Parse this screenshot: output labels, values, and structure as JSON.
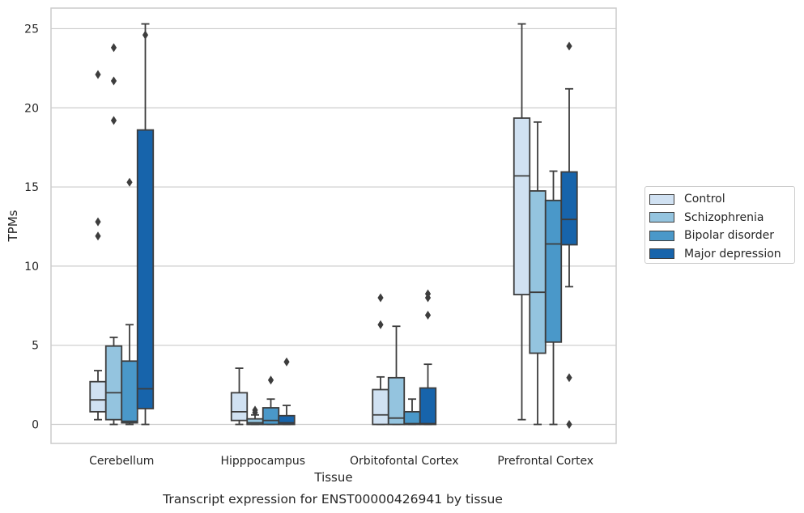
{
  "chart_data": {
    "type": "box",
    "title": "Transcript expression for ENST00000426941 by tissue",
    "xlabel": "Tissue",
    "ylabel": "TPMs",
    "ylim": [
      -1.2,
      26.3
    ],
    "yticks": [
      0,
      5,
      10,
      15,
      20,
      25
    ],
    "grid": true,
    "legend_position": "right",
    "categories": [
      "Cerebellum",
      "Hipppocampus",
      "Orbitofontal Cortex",
      "Prefrontal Cortex"
    ],
    "series": [
      {
        "name": "Control",
        "color": "#d0e1f2",
        "boxes": [
          {
            "q1": 0.8,
            "median": 1.55,
            "q3": 2.7,
            "whisker_low": 0.3,
            "whisker_high": 3.4,
            "outliers": [
              22.1,
              12.8,
              11.9
            ]
          },
          {
            "q1": 0.25,
            "median": 0.8,
            "q3": 2.0,
            "whisker_low": 0.0,
            "whisker_high": 3.55,
            "outliers": []
          },
          {
            "q1": 0.0,
            "median": 0.6,
            "q3": 2.2,
            "whisker_low": 0.0,
            "whisker_high": 3.0,
            "outliers": [
              8.0,
              6.3
            ]
          },
          {
            "q1": 8.2,
            "median": 15.7,
            "q3": 19.35,
            "whisker_low": 0.3,
            "whisker_high": 25.3,
            "outliers": []
          }
        ]
      },
      {
        "name": "Schizophrenia",
        "color": "#94c4df",
        "boxes": [
          {
            "q1": 0.3,
            "median": 2.0,
            "q3": 4.95,
            "whisker_low": 0.0,
            "whisker_high": 5.5,
            "outliers": [
              23.8,
              21.7,
              19.2
            ]
          },
          {
            "q1": 0.0,
            "median": 0.1,
            "q3": 0.35,
            "whisker_low": 0.0,
            "whisker_high": 0.6,
            "outliers": [
              0.9,
              0.75
            ]
          },
          {
            "q1": 0.0,
            "median": 0.4,
            "q3": 2.95,
            "whisker_low": 0.0,
            "whisker_high": 6.2,
            "outliers": []
          },
          {
            "q1": 4.5,
            "median": 8.35,
            "q3": 14.75,
            "whisker_low": 0.0,
            "whisker_high": 19.1,
            "outliers": []
          }
        ]
      },
      {
        "name": "Bipolar disorder",
        "color": "#4a98c9",
        "boxes": [
          {
            "q1": 0.1,
            "median": 0.2,
            "q3": 4.0,
            "whisker_low": 0.0,
            "whisker_high": 6.3,
            "outliers": [
              15.3
            ]
          },
          {
            "q1": 0.0,
            "median": 0.25,
            "q3": 1.05,
            "whisker_low": 0.0,
            "whisker_high": 1.6,
            "outliers": [
              2.8
            ]
          },
          {
            "q1": 0.0,
            "median": 0.05,
            "q3": 0.8,
            "whisker_low": 0.0,
            "whisker_high": 1.6,
            "outliers": []
          },
          {
            "q1": 5.2,
            "median": 11.4,
            "q3": 14.15,
            "whisker_low": 0.0,
            "whisker_high": 16.0,
            "outliers": []
          }
        ]
      },
      {
        "name": "Major depression",
        "color": "#1764ab",
        "boxes": [
          {
            "q1": 1.0,
            "median": 2.25,
            "q3": 18.6,
            "whisker_low": 0.0,
            "whisker_high": 25.3,
            "outliers": [
              24.6
            ]
          },
          {
            "q1": 0.0,
            "median": 0.1,
            "q3": 0.55,
            "whisker_low": 0.0,
            "whisker_high": 1.2,
            "outliers": [
              3.95
            ]
          },
          {
            "q1": 0.0,
            "median": 0.05,
            "q3": 2.3,
            "whisker_low": 0.0,
            "whisker_high": 3.8,
            "outliers": [
              8.25,
              8.0,
              6.9
            ]
          },
          {
            "q1": 11.35,
            "median": 12.95,
            "q3": 15.95,
            "whisker_low": 8.7,
            "whisker_high": 21.2,
            "outliers": [
              23.9,
              2.95,
              0.0
            ]
          }
        ]
      }
    ]
  }
}
